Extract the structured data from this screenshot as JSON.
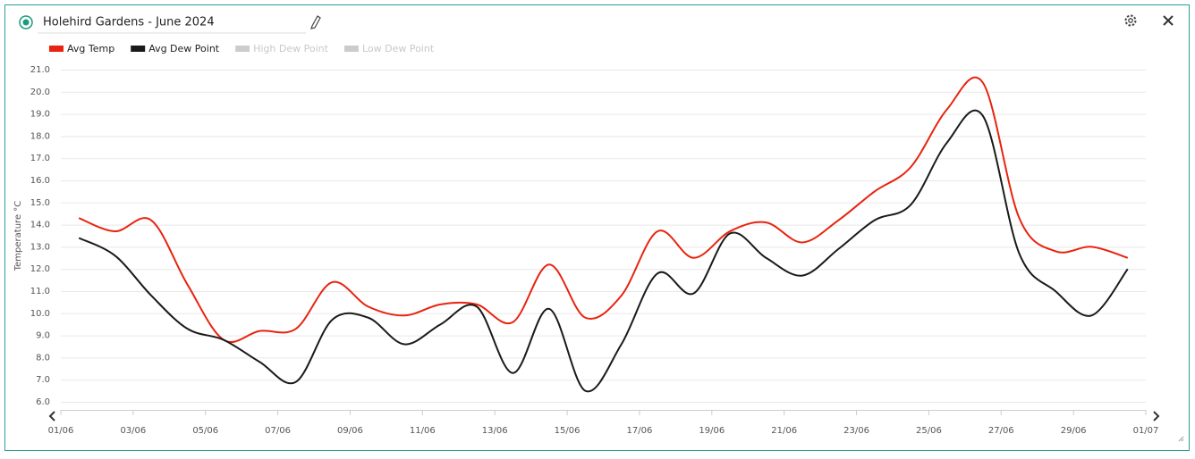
{
  "chart_data": {
    "type": "line",
    "title": "Holehird Gardens - June 2024",
    "y_label": "Temperature °C",
    "x": [
      "01/06",
      "02/06",
      "03/06",
      "04/06",
      "05/06",
      "06/06",
      "07/06",
      "08/06",
      "09/06",
      "10/06",
      "11/06",
      "12/06",
      "13/06",
      "14/06",
      "15/06",
      "16/06",
      "17/06",
      "18/06",
      "19/06",
      "20/06",
      "21/06",
      "22/06",
      "23/06",
      "24/06",
      "25/06",
      "26/06",
      "27/06",
      "28/06",
      "29/06",
      "30/06"
    ],
    "series": [
      {
        "name": "Avg Temp",
        "color": "#e8230f",
        "values": [
          14.3,
          13.7,
          14.2,
          11.3,
          8.8,
          9.2,
          9.3,
          11.4,
          10.3,
          9.9,
          10.4,
          10.4,
          9.6,
          12.2,
          9.8,
          10.8,
          13.7,
          12.5,
          13.7,
          14.1,
          13.2,
          14.2,
          15.5,
          16.6,
          19.2,
          20.4,
          14.3,
          12.8,
          13.0,
          12.5
        ]
      },
      {
        "name": "Avg Dew Point",
        "color": "#1a1a1a",
        "values": [
          13.4,
          12.6,
          10.8,
          9.3,
          8.8,
          7.8,
          6.9,
          9.7,
          9.8,
          8.6,
          9.5,
          10.3,
          7.3,
          10.2,
          6.5,
          8.6,
          11.8,
          10.9,
          13.6,
          12.5,
          11.7,
          12.9,
          14.2,
          14.9,
          17.7,
          18.9,
          12.7,
          11.0,
          9.9,
          12.0
        ]
      }
    ],
    "hidden_series": [
      {
        "name": "High Dew Point",
        "color": "#cccccc"
      },
      {
        "name": "Low Dew Point",
        "color": "#cccccc"
      }
    ],
    "xticks": [
      "01/06",
      "03/06",
      "05/06",
      "07/06",
      "09/06",
      "11/06",
      "13/06",
      "15/06",
      "17/06",
      "19/06",
      "21/06",
      "23/06",
      "25/06",
      "27/06",
      "29/06",
      "01/07"
    ],
    "ylim": [
      6,
      21
    ],
    "yticks": [
      {
        "value": 6,
        "label": "6.0"
      },
      {
        "value": 7,
        "label": "7.0"
      },
      {
        "value": 8,
        "label": "8.0"
      },
      {
        "value": 9,
        "label": "9.0"
      },
      {
        "value": 10,
        "label": "10.0"
      },
      {
        "value": 11,
        "label": "11.0"
      },
      {
        "value": 12,
        "label": "12.0"
      },
      {
        "value": 13,
        "label": "13.0"
      },
      {
        "value": 14,
        "label": "14.0"
      },
      {
        "value": 15,
        "label": "15.0"
      },
      {
        "value": 16,
        "label": "16.0"
      },
      {
        "value": 17,
        "label": "17.0"
      },
      {
        "value": 18,
        "label": "18.0"
      },
      {
        "value": 19,
        "label": "19.0"
      },
      {
        "value": 20,
        "label": "20.0"
      },
      {
        "value": 21,
        "label": "21.0"
      }
    ],
    "grid": true
  }
}
